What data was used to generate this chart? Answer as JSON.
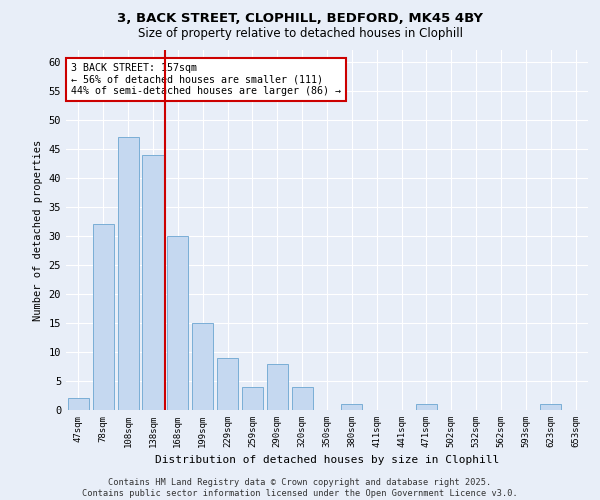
{
  "title1": "3, BACK STREET, CLOPHILL, BEDFORD, MK45 4BY",
  "title2": "Size of property relative to detached houses in Clophill",
  "xlabel": "Distribution of detached houses by size in Clophill",
  "ylabel": "Number of detached properties",
  "bar_labels": [
    "47sqm",
    "78sqm",
    "108sqm",
    "138sqm",
    "168sqm",
    "199sqm",
    "229sqm",
    "259sqm",
    "290sqm",
    "320sqm",
    "350sqm",
    "380sqm",
    "411sqm",
    "441sqm",
    "471sqm",
    "502sqm",
    "532sqm",
    "562sqm",
    "593sqm",
    "623sqm",
    "653sqm"
  ],
  "bar_values": [
    2,
    32,
    47,
    44,
    30,
    15,
    9,
    4,
    8,
    4,
    0,
    1,
    0,
    0,
    1,
    0,
    0,
    0,
    0,
    1,
    0
  ],
  "bar_color": "#c5d8f0",
  "bar_edgecolor": "#7aaed6",
  "background_color": "#e8eef8",
  "grid_color": "#ffffff",
  "vline_x": 3.5,
  "vline_color": "#cc0000",
  "annotation_title": "3 BACK STREET: 157sqm",
  "annotation_line1": "← 56% of detached houses are smaller (111)",
  "annotation_line2": "44% of semi-detached houses are larger (86) →",
  "annotation_box_color": "#cc0000",
  "ylim": [
    0,
    62
  ],
  "yticks": [
    0,
    5,
    10,
    15,
    20,
    25,
    30,
    35,
    40,
    45,
    50,
    55,
    60
  ],
  "footer1": "Contains HM Land Registry data © Crown copyright and database right 2025.",
  "footer2": "Contains public sector information licensed under the Open Government Licence v3.0."
}
